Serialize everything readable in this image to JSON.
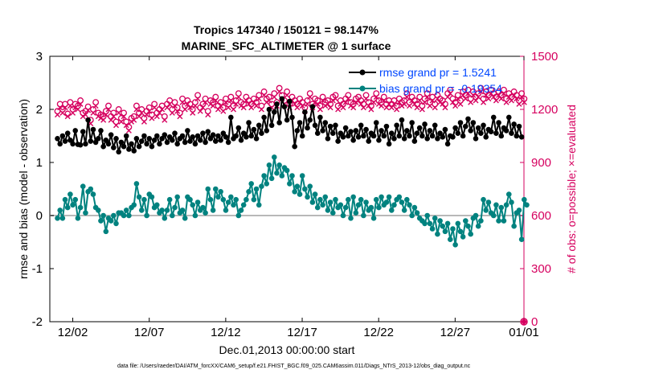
{
  "chart_data": {
    "type": "line",
    "title": "Tropics 147340 / 150121 = 98.147%",
    "subtitle": "MARINE_SFC_ALTIMETER @ 1 surface",
    "xlabel": "Dec.01,2013 00:00:00 start",
    "ylabel_left": "rmse and bias (model - observation)",
    "ylabel_right": "# of obs: o=possible; ×=evaluated",
    "ylim_left": [
      -2,
      3
    ],
    "ylim_right": [
      0,
      1500
    ],
    "xlim": [
      0.5,
      31.5
    ],
    "x_tick_positions": [
      2,
      7,
      12,
      17,
      22,
      27,
      32
    ],
    "x_tick_labels": [
      "12/02",
      "12/07",
      "12/12",
      "12/17",
      "12/22",
      "12/27",
      "01/01"
    ],
    "y_ticks_left": [
      "-2",
      "-1",
      "0",
      "1",
      "2",
      "3"
    ],
    "y_ticks_right": [
      "0",
      "300",
      "600",
      "900",
      "1200",
      "1500"
    ],
    "footnote": "data file: /Users/raeder/DAI/ATM_forcXX/CAM6_setup/f.e21.FHIST_BGC.f09_025.CAM6assim.011/Diags_NTrS_2013-12/obs_diag_output.nc",
    "colors": {
      "rmse": "#000000",
      "bias": "#00827f",
      "obs": "#d6005f",
      "zero": "#b8b8b8"
    },
    "series": [
      {
        "name": "rmse grand pr = 1.5241",
        "axis": "left",
        "values": [
          1.45,
          1.35,
          1.5,
          1.4,
          1.55,
          1.42,
          1.35,
          1.6,
          1.34,
          1.33,
          1.58,
          1.35,
          1.8,
          1.4,
          1.62,
          1.38,
          1.45,
          1.6,
          1.3,
          1.42,
          1.35,
          1.52,
          1.28,
          1.45,
          1.2,
          1.38,
          1.3,
          1.5,
          1.25,
          1.35,
          1.22,
          1.45,
          1.3,
          1.4,
          1.5,
          1.35,
          1.45,
          1.3,
          1.42,
          1.5,
          1.35,
          1.45,
          1.52,
          1.38,
          1.48,
          1.42,
          1.55,
          1.35,
          1.45,
          1.5,
          1.38,
          1.6,
          1.4,
          1.48,
          1.35,
          1.5,
          1.42,
          1.55,
          1.38,
          1.58,
          1.45,
          1.52,
          1.4,
          1.5,
          1.42,
          1.55,
          1.48,
          1.38,
          1.85,
          1.45,
          1.5,
          1.65,
          1.42,
          1.55,
          1.48,
          1.75,
          1.5,
          1.62,
          1.45,
          1.7,
          1.55,
          1.85,
          1.6,
          2.0,
          1.7,
          1.95,
          2.1,
          1.75,
          2.2,
          2.05,
          1.8,
          2.15,
          1.85,
          1.3,
          1.6,
          1.75,
          1.5,
          1.95,
          1.65,
          1.8,
          2.05,
          1.7,
          1.55,
          1.85,
          1.6,
          1.75,
          1.45,
          1.68,
          1.55,
          1.7,
          1.4,
          1.55,
          1.48,
          1.65,
          1.5,
          1.58,
          1.42,
          1.6,
          1.48,
          1.7,
          1.5,
          1.62,
          1.4,
          1.55,
          1.5,
          1.75,
          1.42,
          1.6,
          1.5,
          1.68,
          1.35,
          1.55,
          1.45,
          1.7,
          1.5,
          1.8,
          1.45,
          1.6,
          1.5,
          1.75,
          1.4,
          1.55,
          1.65,
          1.5,
          1.72,
          1.45,
          1.6,
          1.5,
          1.7,
          1.45,
          1.55,
          1.48,
          1.62,
          1.35,
          1.5,
          1.48,
          1.65,
          1.55,
          1.75,
          1.5,
          1.68,
          1.82,
          1.6,
          1.75,
          1.45,
          1.65,
          1.55,
          1.7,
          1.48,
          1.62,
          1.58,
          1.85,
          1.55,
          1.75,
          1.5,
          1.65,
          1.6,
          1.85,
          1.55,
          1.72,
          1.5,
          1.68,
          1.48
        ]
      },
      {
        "name": "bias grand pr = -0.19354",
        "axis": "left",
        "values": [
          -0.05,
          0.1,
          -0.05,
          0.3,
          0.15,
          0.4,
          0.2,
          0.3,
          -0.05,
          0.15,
          0.55,
          0.05,
          0.45,
          0.5,
          0.4,
          0.15,
          0.1,
          -0.1,
          0.0,
          -0.3,
          -0.05,
          -0.1,
          0.0,
          -0.15,
          0.05,
          0.05,
          0.0,
          0.1,
          0.0,
          0.15,
          0.2,
          0.6,
          0.35,
          0.1,
          0.3,
          0.0,
          0.4,
          0.35,
          0.15,
          0.2,
          0.05,
          0.1,
          -0.05,
          0.1,
          0.3,
          0.0,
          0.15,
          0.35,
          0.05,
          0.1,
          -0.05,
          0.35,
          0.3,
          0.2,
          0.0,
          0.25,
          0.1,
          0.15,
          0.05,
          0.5,
          0.3,
          0.1,
          0.5,
          0.35,
          0.45,
          0.3,
          0.1,
          0.25,
          0.35,
          0.2,
          0.3,
          0.0,
          0.1,
          0.2,
          0.3,
          0.45,
          0.6,
          0.3,
          0.5,
          0.2,
          0.55,
          0.75,
          0.6,
          0.95,
          0.7,
          1.1,
          0.8,
          0.95,
          0.75,
          0.9,
          0.85,
          0.6,
          0.75,
          0.45,
          0.55,
          0.4,
          0.75,
          0.5,
          0.35,
          0.55,
          0.25,
          0.4,
          0.15,
          0.3,
          0.2,
          0.35,
          0.1,
          0.25,
          0.05,
          0.3,
          0.15,
          0.2,
          0.0,
          0.15,
          0.3,
          -0.05,
          0.35,
          0.05,
          0.2,
          0.3,
          0.0,
          0.25,
          0.1,
          0.15,
          -0.05,
          0.3,
          0.15,
          0.35,
          0.2,
          0.25,
          0.35,
          0.1,
          0.2,
          0.3,
          0.35,
          0.25,
          0.1,
          0.3,
          0.2,
          0.0,
          0.15,
          0.05,
          -0.05,
          -0.1,
          -0.15,
          0.0,
          -0.15,
          -0.25,
          -0.05,
          -0.35,
          -0.1,
          -0.2,
          -0.3,
          -0.15,
          -0.45,
          -0.25,
          -0.55,
          -0.15,
          -0.3,
          -0.4,
          -0.1,
          -0.2,
          -0.35,
          -0.05,
          0.0,
          -0.2,
          -0.1,
          0.3,
          0.1,
          0.25,
          0.05,
          0.0,
          0.2,
          -0.1,
          0.15,
          -0.1,
          0.2,
          0.4,
          0.25,
          -0.2,
          0.05,
          0.1,
          -0.45,
          0.3,
          0.2
        ]
      },
      {
        "name": "possible",
        "axis": "right",
        "values": [
          1190,
          1230,
          1200,
          1230,
          1175,
          1240,
          1200,
          1230,
          1220,
          1250,
          1180,
          1190,
          1215,
          1140,
          1200,
          1240,
          1180,
          1170,
          1160,
          1190,
          1220,
          1160,
          1180,
          1130,
          1200,
          1150,
          1180,
          1130,
          1100,
          1150,
          1160,
          1220,
          1180,
          1200,
          1150,
          1190,
          1210,
          1170,
          1230,
          1180,
          1200,
          1220,
          1160,
          1230,
          1250,
          1200,
          1240,
          1210,
          1180,
          1260,
          1220,
          1250,
          1230,
          1200,
          1240,
          1280,
          1210,
          1230,
          1260,
          1190,
          1250,
          1240,
          1270,
          1220,
          1240,
          1210,
          1260,
          1230,
          1270,
          1220,
          1250,
          1290,
          1240,
          1230,
          1270,
          1250,
          1230,
          1260,
          1240,
          1280,
          1220,
          1300,
          1260,
          1270,
          1230,
          1290,
          1240,
          1320,
          1280,
          1250,
          1300,
          1230,
          1270,
          1250,
          1230,
          1260,
          1240,
          1210,
          1250,
          1290,
          1230,
          1260,
          1250,
          1220,
          1270,
          1240,
          1250,
          1230,
          1270,
          1280,
          1220,
          1250,
          1230,
          1260,
          1280,
          1240,
          1230,
          1260,
          1270,
          1250,
          1230,
          1280,
          1240,
          1220,
          1260,
          1290,
          1250,
          1240,
          1270,
          1230,
          1250,
          1230,
          1250,
          1220,
          1260,
          1240,
          1250,
          1290,
          1240,
          1270,
          1250,
          1230,
          1270,
          1220,
          1260,
          1290,
          1240,
          1270,
          1230,
          1280,
          1260,
          1250,
          1230,
          1290,
          1310,
          1260,
          1240,
          1280,
          1250,
          1300,
          1280,
          1310,
          1260,
          1300,
          1270,
          1290,
          1320,
          1260,
          1300,
          1280,
          1310,
          1290,
          1270,
          1300,
          1280,
          1310,
          1260,
          1290,
          1270,
          1300,
          1280,
          1250,
          1290,
          1260
        ]
      },
      {
        "name": "evaluated",
        "axis": "right",
        "values": [
          1170,
          1210,
          1180,
          1210,
          1160,
          1220,
          1180,
          1210,
          1200,
          1230,
          1160,
          1170,
          1195,
          1120,
          1180,
          1220,
          1160,
          1150,
          1140,
          1170,
          1200,
          1140,
          1160,
          1110,
          1180,
          1130,
          1160,
          1110,
          1080,
          1130,
          1140,
          1200,
          1160,
          1180,
          1130,
          1170,
          1190,
          1150,
          1210,
          1160,
          1180,
          1200,
          1140,
          1210,
          1230,
          1180,
          1220,
          1190,
          1160,
          1240,
          1200,
          1230,
          1210,
          1180,
          1220,
          1260,
          1190,
          1210,
          1240,
          1170,
          1230,
          1220,
          1250,
          1200,
          1220,
          1190,
          1240,
          1210,
          1250,
          1200,
          1230,
          1270,
          1220,
          1210,
          1250,
          1230,
          1210,
          1240,
          1220,
          1260,
          1200,
          1280,
          1240,
          1250,
          1210,
          1270,
          1220,
          1300,
          1260,
          1230,
          1280,
          1210,
          1250,
          1230,
          1210,
          1240,
          1220,
          1190,
          1230,
          1270,
          1210,
          1240,
          1230,
          1200,
          1250,
          1220,
          1230,
          1210,
          1250,
          1260,
          1200,
          1230,
          1210,
          1240,
          1260,
          1220,
          1210,
          1240,
          1250,
          1230,
          1210,
          1260,
          1220,
          1200,
          1240,
          1270,
          1230,
          1220,
          1250,
          1210,
          1230,
          1210,
          1230,
          1200,
          1240,
          1220,
          1230,
          1270,
          1220,
          1250,
          1230,
          1210,
          1250,
          1200,
          1240,
          1270,
          1220,
          1250,
          1210,
          1260,
          1240,
          1230,
          1210,
          1270,
          1290,
          1240,
          1220,
          1260,
          1230,
          1280,
          1260,
          1290,
          1240,
          1280,
          1250,
          1270,
          1300,
          1240,
          1280,
          1260,
          1290,
          1270,
          1250,
          1280,
          1260,
          1290,
          1240,
          1270,
          1250,
          1280,
          1260,
          1230,
          1270,
          1240
        ]
      }
    ],
    "end_marker": {
      "x": 32,
      "possible": 0,
      "evaluated": 0
    }
  }
}
